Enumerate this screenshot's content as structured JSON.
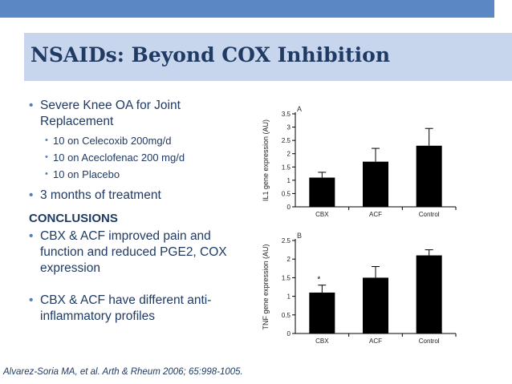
{
  "slide": {
    "title": "NSAIDs: Beyond COX Inhibition",
    "bullets": [
      {
        "text": "Severe Knee OA for Joint Replacement"
      },
      {
        "text": "10 on Celecoxib 200mg/d"
      },
      {
        "text": "10 on Aceclofenac 200 mg/d"
      },
      {
        "text": "10 on Placebo"
      },
      {
        "text": "3 months of treatment"
      }
    ],
    "conclusions_heading": "CONCLUSIONS",
    "conclusions": [
      {
        "text": "CBX & ACF improved pain and function and reduced PGE2, COX expression"
      },
      {
        "text": "CBX & ACF have different anti-inflammatory profiles"
      }
    ],
    "citation": "Alvarez-Soria MA, et al. Arth & Rheum 2006; 65:998-1005."
  },
  "colors": {
    "title": "#1f3a63",
    "accent_bar": "#5b87c5",
    "title_box": "#c7d6ec",
    "bullet": "#4f81bd"
  },
  "chart_data": [
    {
      "type": "bar",
      "panel": "A",
      "ylabel": "IL1 gene expression (AU)",
      "categories": [
        "CBX",
        "ACF",
        "Control"
      ],
      "values": [
        1.1,
        1.7,
        2.3
      ],
      "errors": [
        0.2,
        0.5,
        0.65
      ],
      "ylim": [
        0,
        3.5
      ],
      "yticks": [
        "0",
        "0.5",
        "1",
        "1.5",
        "2",
        "2.5",
        "3",
        "3.5"
      ]
    },
    {
      "type": "bar",
      "panel": "B",
      "ylabel": "TNF gene expression (AU)",
      "categories": [
        "CBX",
        "ACF",
        "Control"
      ],
      "values": [
        1.1,
        1.5,
        2.1
      ],
      "errors": [
        0.2,
        0.3,
        0.15
      ],
      "ylim": [
        0,
        2.5
      ],
      "yticks": [
        "0",
        "0.5",
        "1",
        "1.5",
        "2",
        "2.5"
      ],
      "annotation": "*"
    }
  ]
}
